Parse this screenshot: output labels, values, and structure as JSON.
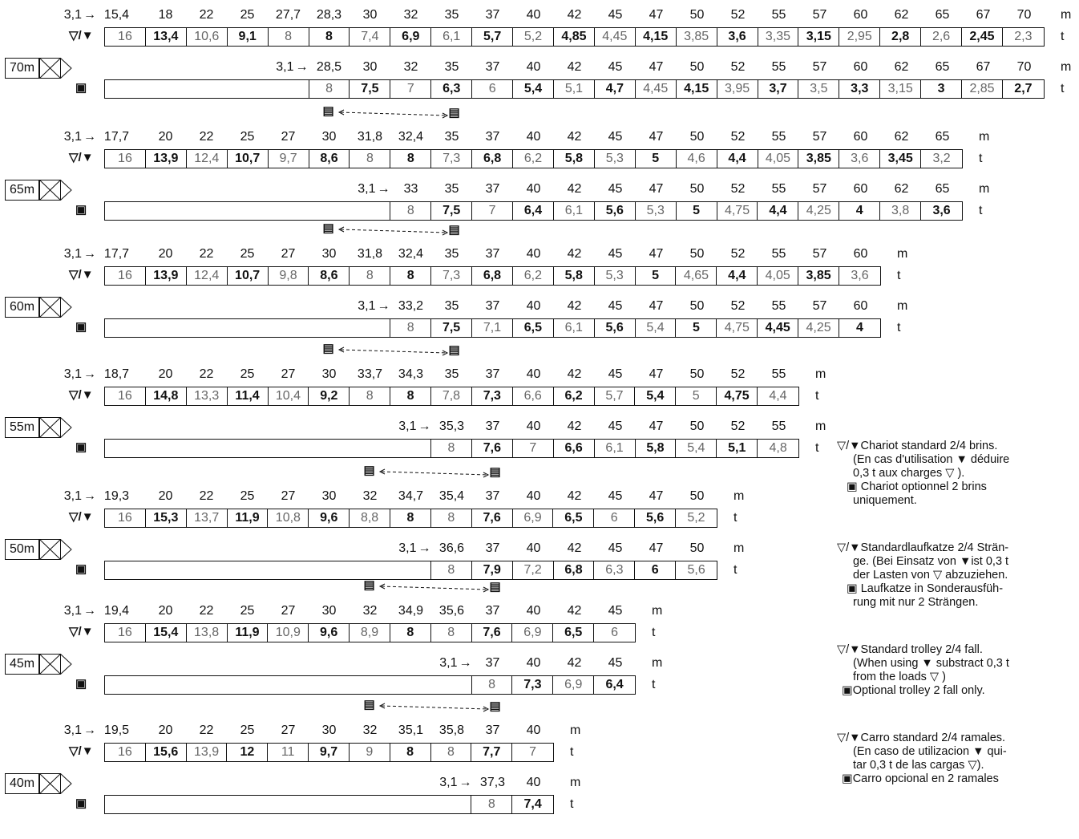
{
  "units": {
    "m": "m",
    "t": "t"
  },
  "symbols": {
    "dual": "▽/▼",
    "trolley": "▤",
    "single": "▣"
  },
  "blocks": [
    {
      "label": "70m",
      "std_radii": [
        "15,4",
        "18",
        "22",
        "25",
        "27,7",
        "28,3",
        "30",
        "32",
        "35",
        "37",
        "40",
        "42",
        "45",
        "47",
        "50",
        "52",
        "55",
        "57",
        "60",
        "62",
        "65",
        "67",
        "70"
      ],
      "std_loads": [
        "16",
        "13,4",
        "10,6",
        "9,1",
        "8",
        "8",
        "7,4",
        "6,9",
        "6,1",
        "5,7",
        "5,2",
        "4,85",
        "4,45",
        "4,15",
        "3,85",
        "3,6",
        "3,35",
        "3,15",
        "2,95",
        "2,8",
        "2,6",
        "2,45",
        "2,3"
      ],
      "opt_start": "28,5",
      "opt_radii": [
        "30",
        "32",
        "35",
        "37",
        "40",
        "42",
        "45",
        "47",
        "50",
        "52",
        "55",
        "57",
        "60",
        "62",
        "65",
        "67",
        "70"
      ],
      "opt_loads": [
        "8",
        "7,5",
        "7",
        "6,3",
        "6",
        "5,4",
        "5,1",
        "4,7",
        "4,45",
        "4,15",
        "3,95",
        "3,7",
        "3,5",
        "3,3",
        "3,15",
        "3",
        "2,85",
        "2,7"
      ]
    },
    {
      "label": "65m",
      "std_radii": [
        "17,7",
        "20",
        "22",
        "25",
        "27",
        "30",
        "31,8",
        "32,4",
        "35",
        "37",
        "40",
        "42",
        "45",
        "47",
        "50",
        "52",
        "55",
        "57",
        "60",
        "62",
        "65"
      ],
      "std_loads": [
        "16",
        "13,9",
        "12,4",
        "10,7",
        "9,7",
        "8,6",
        "8",
        "8",
        "7,3",
        "6,8",
        "6,2",
        "5,8",
        "5,3",
        "5",
        "4,6",
        "4,4",
        "4,05",
        "3,85",
        "3,6",
        "3,45",
        "3,2"
      ],
      "opt_start": "33",
      "opt_radii": [
        "35",
        "37",
        "40",
        "42",
        "45",
        "47",
        "50",
        "52",
        "55",
        "57",
        "60",
        "62",
        "65"
      ],
      "opt_loads": [
        "8",
        "7,5",
        "7",
        "6,4",
        "6,1",
        "5,6",
        "5,3",
        "5",
        "4,75",
        "4,4",
        "4,25",
        "4",
        "3,8",
        "3,6"
      ]
    },
    {
      "label": "60m",
      "std_radii": [
        "17,7",
        "20",
        "22",
        "25",
        "27",
        "30",
        "31,8",
        "32,4",
        "35",
        "37",
        "40",
        "42",
        "45",
        "47",
        "50",
        "52",
        "55",
        "57",
        "60"
      ],
      "std_loads": [
        "16",
        "13,9",
        "12,4",
        "10,7",
        "9,8",
        "8,6",
        "8",
        "8",
        "7,3",
        "6,8",
        "6,2",
        "5,8",
        "5,3",
        "5",
        "4,65",
        "4,4",
        "4,05",
        "3,85",
        "3,6"
      ],
      "opt_start": "33,2",
      "opt_radii": [
        "35",
        "37",
        "40",
        "42",
        "45",
        "47",
        "50",
        "52",
        "55",
        "57",
        "60"
      ],
      "opt_loads": [
        "8",
        "7,5",
        "7,1",
        "6,5",
        "6,1",
        "5,6",
        "5,4",
        "5",
        "4,75",
        "4,45",
        "4,25",
        "4"
      ]
    },
    {
      "label": "55m",
      "std_radii": [
        "18,7",
        "20",
        "22",
        "25",
        "27",
        "30",
        "33,7",
        "34,3",
        "35",
        "37",
        "40",
        "42",
        "45",
        "47",
        "50",
        "52",
        "55"
      ],
      "std_loads": [
        "16",
        "14,8",
        "13,3",
        "11,4",
        "10,4",
        "9,2",
        "8",
        "8",
        "7,8",
        "7,3",
        "6,6",
        "6,2",
        "5,7",
        "5,4",
        "5",
        "4,75",
        "4,4"
      ],
      "opt_start": "35,3",
      "opt_radii": [
        "37",
        "40",
        "42",
        "45",
        "47",
        "50",
        "52",
        "55"
      ],
      "opt_loads": [
        "8",
        "7,6",
        "7",
        "6,6",
        "6,1",
        "5,8",
        "5,4",
        "5,1",
        "4,8"
      ]
    },
    {
      "label": "50m",
      "std_radii": [
        "19,3",
        "20",
        "22",
        "25",
        "27",
        "30",
        "32",
        "34,7",
        "35,4",
        "37",
        "40",
        "42",
        "45",
        "47",
        "50"
      ],
      "std_loads": [
        "16",
        "15,3",
        "13,7",
        "11,9",
        "10,8",
        "9,6",
        "8,8",
        "8",
        "8",
        "7,6",
        "6,9",
        "6,5",
        "6",
        "5,6",
        "5,2"
      ],
      "opt_start": "36,6",
      "opt_radii": [
        "37",
        "40",
        "42",
        "45",
        "47",
        "50"
      ],
      "opt_loads": [
        "8",
        "7,9",
        "7,2",
        "6,8",
        "6,3",
        "6",
        "5,6"
      ]
    },
    {
      "label": "45m",
      "std_radii": [
        "19,4",
        "20",
        "22",
        "25",
        "27",
        "30",
        "32",
        "34,9",
        "35,6",
        "37",
        "40",
        "42",
        "45"
      ],
      "std_loads": [
        "16",
        "15,4",
        "13,8",
        "11,9",
        "10,9",
        "9,6",
        "8,9",
        "8",
        "8",
        "7,6",
        "6,9",
        "6,5",
        "6"
      ],
      "opt_start": "37",
      "opt_radii": [
        "40",
        "42",
        "45"
      ],
      "opt_loads": [
        "8",
        "7,3",
        "6,9",
        "6,4"
      ]
    },
    {
      "label": "40m",
      "std_radii": [
        "19,5",
        "20",
        "22",
        "25",
        "27",
        "30",
        "32",
        "35,1",
        "35,8",
        "37",
        "40"
      ],
      "std_loads": [
        "16",
        "15,6",
        "13,9",
        "12",
        "11",
        "9,7",
        "9",
        "8",
        "8",
        "7,7",
        "7"
      ],
      "opt_start": "37,3",
      "opt_radii": [
        "40"
      ],
      "opt_loads": [
        "8",
        "7,4"
      ]
    }
  ],
  "legend": {
    "fr": {
      "head": "▽/▼Chariot standard 2/4 brins.",
      "l2": "(En cas d'utilisation ▼ déduire",
      "l3": "0,3 t aux charges ▽ ).",
      "opt1": "▣ Chariot optionnel 2 brins",
      "opt2": "uniquement."
    },
    "de": {
      "head": "▽/▼Standardlaufkatze 2/4 Strän-",
      "l2": "ge. (Bei Einsatz von ▼ist 0,3 t",
      "l3": "der Lasten von ▽ abzuziehen.",
      "opt1": "▣ Laufkatze in Sonderausfüh-",
      "opt2": "rung mit nur 2 Strängen."
    },
    "en": {
      "head": "▽/▼Standard trolley 2/4 fall.",
      "l2": "(When using ▼ substract 0,3 t",
      "l3": "from the loads ▽ )",
      "opt1": "▣Optional trolley 2 fall only."
    },
    "es": {
      "head": "▽/▼Carro standard 2/4 ramales.",
      "l2": "(En caso de utilizacion ▼ qui-",
      "l3": "tar 0,3 t de las cargas ▽).",
      "opt1": "▣Carro opcional en 2 ramales"
    }
  },
  "start_radius": "3,1"
}
